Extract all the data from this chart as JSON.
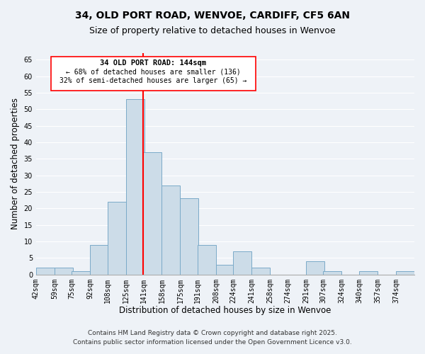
{
  "title": "34, OLD PORT ROAD, WENVOE, CARDIFF, CF5 6AN",
  "subtitle": "Size of property relative to detached houses in Wenvoe",
  "xlabel": "Distribution of detached houses by size in Wenvoe",
  "ylabel": "Number of detached properties",
  "bins": [
    42,
    59,
    75,
    92,
    108,
    125,
    141,
    158,
    175,
    191,
    208,
    224,
    241,
    258,
    274,
    291,
    307,
    324,
    340,
    357,
    374
  ],
  "counts": [
    2,
    2,
    1,
    9,
    22,
    53,
    37,
    27,
    23,
    9,
    3,
    7,
    2,
    0,
    0,
    4,
    1,
    0,
    1,
    0,
    1
  ],
  "bar_color": "#ccdce8",
  "bar_edge_color": "#7aaac8",
  "vline_x": 141,
  "vline_color": "red",
  "ylim": [
    0,
    67
  ],
  "yticks": [
    0,
    5,
    10,
    15,
    20,
    25,
    30,
    35,
    40,
    45,
    50,
    55,
    60,
    65
  ],
  "tick_labels": [
    "42sqm",
    "59sqm",
    "75sqm",
    "92sqm",
    "108sqm",
    "125sqm",
    "141sqm",
    "158sqm",
    "175sqm",
    "191sqm",
    "208sqm",
    "224sqm",
    "241sqm",
    "258sqm",
    "274sqm",
    "291sqm",
    "307sqm",
    "324sqm",
    "340sqm",
    "357sqm",
    "374sqm"
  ],
  "annotation_title": "34 OLD PORT ROAD: 144sqm",
  "annotation_line1": "← 68% of detached houses are smaller (136)",
  "annotation_line2": "32% of semi-detached houses are larger (65) →",
  "footnote1": "Contains HM Land Registry data © Crown copyright and database right 2025.",
  "footnote2": "Contains public sector information licensed under the Open Government Licence v3.0.",
  "background_color": "#eef2f7",
  "grid_color": "#ffffff",
  "title_fontsize": 10,
  "subtitle_fontsize": 9,
  "axis_label_fontsize": 8.5,
  "tick_fontsize": 7,
  "annotation_fontsize": 7.5,
  "footnote_fontsize": 6.5
}
